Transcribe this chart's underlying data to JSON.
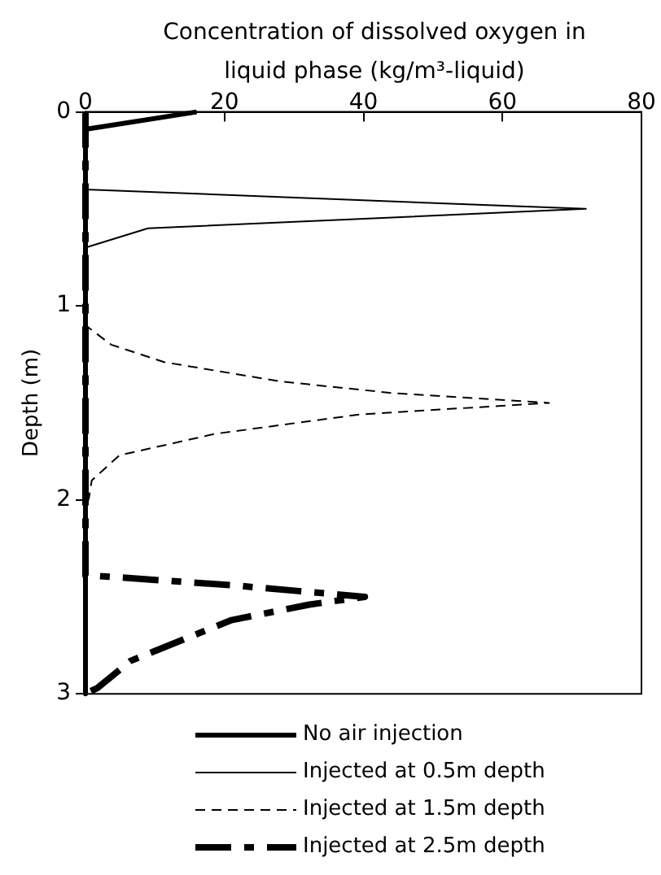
{
  "chart_data": {
    "type": "line",
    "xlabel": "Concentration of dissolved oxygen in liquid phase (kg/m³-liquid)",
    "ylabel": "Depth (m)",
    "xlim": [
      0,
      80
    ],
    "xticks": [
      0,
      20,
      40,
      60,
      80
    ],
    "ylim": [
      3,
      0
    ],
    "yticks": [
      0,
      1,
      2,
      3
    ],
    "grid": false,
    "legend": "bottom",
    "marker": "none",
    "series": [
      {
        "name": "No air injection",
        "color": "#000000",
        "line_style": "solid",
        "x": [
          16,
          0,
          0
        ],
        "values": [
          0,
          0.09,
          3
        ]
      },
      {
        "name": "Injected at 0.5m depth",
        "color": "#000000",
        "line_style": "solid",
        "x": [
          0,
          0,
          72,
          9,
          0,
          0
        ],
        "values": [
          0,
          0.4,
          0.5,
          0.6,
          0.7,
          3
        ]
      },
      {
        "name": "Injected at 1.5m depth",
        "color": "#000000",
        "line_style": "dashed",
        "x": [
          0,
          0,
          3.7,
          11.3,
          28.2,
          44.3,
          66.7,
          39.4,
          18.6,
          4.9,
          0.9,
          0.5,
          0,
          0
        ],
        "values": [
          0,
          1.1,
          1.2,
          1.29,
          1.39,
          1.45,
          1.5,
          1.56,
          1.66,
          1.77,
          1.9,
          1.99,
          2.05,
          3
        ]
      },
      {
        "name": "Injected at 2.5m depth",
        "color": "#000000",
        "line_style": "dashdot",
        "x": [
          0,
          0,
          0.9,
          21,
          40.2,
          32.2,
          21,
          6.5,
          1.7,
          0
        ],
        "values": [
          0,
          2.39,
          2.39,
          2.44,
          2.5,
          2.54,
          2.62,
          2.83,
          2.97,
          3
        ]
      }
    ]
  }
}
